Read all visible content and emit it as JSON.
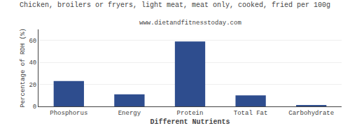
{
  "chart_data": {
    "type": "bar",
    "title": "Chicken, broilers or fryers, light meat, meat only, cooked, fried per 100g",
    "subtitle": "www.dietandfitnesstoday.com",
    "xlabel": "Different Nutrients",
    "ylabel": "Percentage of RDH (%)",
    "categories": [
      "Phosphorus",
      "Energy",
      "Protein",
      "Total Fat",
      "Carbohydrate"
    ],
    "values": [
      23,
      11,
      59,
      10,
      1
    ],
    "color": "#2e4d8e",
    "ylim": [
      0,
      70
    ],
    "yticks": [
      0,
      20,
      40,
      60
    ],
    "grid": true
  }
}
